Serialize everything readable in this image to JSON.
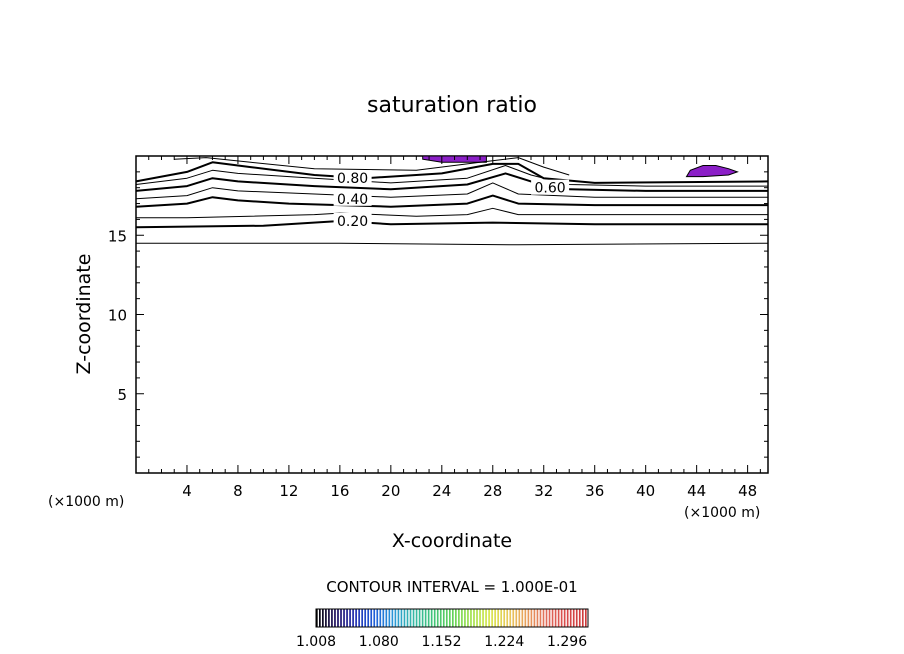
{
  "chart_data": {
    "type": "contour",
    "title": "saturation ratio",
    "xlabel": "X-coordinate",
    "ylabel": "Z-coordinate",
    "x_units_left": "(×1000 m)",
    "x_units_right": "(×1000 m)",
    "xlim": [
      0,
      49.6
    ],
    "ylim": [
      0,
      20
    ],
    "x_ticks": [
      4,
      8,
      12,
      16,
      20,
      24,
      28,
      32,
      36,
      40,
      44,
      48
    ],
    "y_ticks": [
      5,
      10,
      15
    ],
    "contour_interval_text": "CONTOUR INTERVAL = 1.000E-01",
    "contour_labels": [
      {
        "text": "0.80",
        "x": 17.0,
        "y": 18.6
      },
      {
        "text": "0.40",
        "x": 17.0,
        "y": 17.3
      },
      {
        "text": "0.20",
        "x": 17.0,
        "y": 15.9
      },
      {
        "text": "0.60",
        "x": 32.5,
        "y": 18.0
      }
    ],
    "contours": [
      {
        "level": 0.1,
        "bold": false,
        "points": [
          [
            0,
            14.5
          ],
          [
            16,
            14.5
          ],
          [
            30,
            14.4
          ],
          [
            49.6,
            14.5
          ]
        ]
      },
      {
        "level": 0.2,
        "bold": true,
        "points": [
          [
            0,
            15.5
          ],
          [
            10,
            15.6
          ],
          [
            16,
            15.9
          ],
          [
            20,
            15.7
          ],
          [
            28,
            15.8
          ],
          [
            36,
            15.7
          ],
          [
            49.6,
            15.7
          ]
        ]
      },
      {
        "level": 0.3,
        "bold": false,
        "points": [
          [
            0,
            16.1
          ],
          [
            4,
            16.1
          ],
          [
            14,
            16.3
          ],
          [
            16,
            16.4
          ],
          [
            22,
            16.2
          ],
          [
            26,
            16.3
          ],
          [
            28,
            16.7
          ],
          [
            30,
            16.3
          ],
          [
            36,
            16.3
          ],
          [
            49.6,
            16.3
          ]
        ]
      },
      {
        "level": 0.4,
        "bold": true,
        "points": [
          [
            0,
            16.8
          ],
          [
            4,
            17.0
          ],
          [
            6,
            17.4
          ],
          [
            8,
            17.2
          ],
          [
            12,
            17.0
          ],
          [
            20,
            16.8
          ],
          [
            26,
            17.0
          ],
          [
            28,
            17.5
          ],
          [
            30,
            17.0
          ],
          [
            36,
            16.9
          ],
          [
            49.6,
            16.9
          ]
        ]
      },
      {
        "level": 0.5,
        "bold": false,
        "points": [
          [
            0,
            17.3
          ],
          [
            4,
            17.5
          ],
          [
            6,
            18.0
          ],
          [
            8,
            17.8
          ],
          [
            14,
            17.6
          ],
          [
            20,
            17.4
          ],
          [
            26,
            17.6
          ],
          [
            28,
            18.3
          ],
          [
            30,
            17.6
          ],
          [
            36,
            17.4
          ],
          [
            49.6,
            17.4
          ]
        ]
      },
      {
        "level": 0.6,
        "bold": true,
        "points": [
          [
            0,
            17.8
          ],
          [
            4,
            18.1
          ],
          [
            6,
            18.6
          ],
          [
            8,
            18.4
          ],
          [
            14,
            18.1
          ],
          [
            20,
            17.9
          ],
          [
            26,
            18.2
          ],
          [
            29,
            18.9
          ],
          [
            31,
            18.4
          ],
          [
            34,
            17.9
          ],
          [
            40,
            17.8
          ],
          [
            49.6,
            17.8
          ]
        ]
      },
      {
        "level": 0.7,
        "bold": false,
        "points": [
          [
            0,
            18.2
          ],
          [
            4,
            18.6
          ],
          [
            6,
            19.1
          ],
          [
            8,
            18.9
          ],
          [
            14,
            18.6
          ],
          [
            20,
            18.3
          ],
          [
            26,
            18.6
          ],
          [
            29,
            19.4
          ],
          [
            31,
            18.8
          ],
          [
            34,
            18.2
          ],
          [
            40,
            18.1
          ],
          [
            49.6,
            18.1
          ]
        ]
      },
      {
        "level": 0.8,
        "bold": true,
        "points": [
          [
            0,
            18.4
          ],
          [
            4,
            19.0
          ],
          [
            6,
            19.6
          ],
          [
            9,
            19.3
          ],
          [
            14,
            18.8
          ],
          [
            18,
            18.6
          ],
          [
            24,
            18.9
          ],
          [
            28,
            19.5
          ],
          [
            30,
            19.5
          ],
          [
            32,
            18.6
          ],
          [
            36,
            18.3
          ],
          [
            49.6,
            18.4
          ]
        ]
      },
      {
        "level": 0.9,
        "bold": false,
        "points": [
          [
            3,
            19.8
          ],
          [
            5.5,
            19.9
          ],
          [
            9,
            19.6
          ],
          [
            14,
            19.2
          ],
          [
            22,
            19.1
          ],
          [
            27,
            19.6
          ],
          [
            30,
            19.9
          ],
          [
            32,
            19.3
          ],
          [
            34,
            18.8
          ]
        ]
      }
    ],
    "filled_regions": [
      {
        "color": "#8B1FC7",
        "points": [
          [
            22.5,
            20
          ],
          [
            27.5,
            20
          ],
          [
            27.5,
            19.6
          ],
          [
            24,
            19.6
          ],
          [
            22.5,
            19.8
          ]
        ]
      },
      {
        "color": "#8B1FC7",
        "points": [
          [
            43.2,
            18.7
          ],
          [
            43.5,
            19.1
          ],
          [
            44.5,
            19.4
          ],
          [
            45.5,
            19.4
          ],
          [
            46.5,
            19.2
          ],
          [
            47.2,
            19.0
          ],
          [
            46.5,
            18.8
          ],
          [
            44.5,
            18.7
          ]
        ]
      }
    ],
    "colorbar": {
      "min": 1.008,
      "max": 1.32,
      "tick_labels": [
        "1.008",
        "1.080",
        "1.152",
        "1.224",
        "1.296"
      ],
      "colors": [
        "#000000",
        "#1a0a5e",
        "#1e2bb0",
        "#1f5fd8",
        "#2a98d8",
        "#35b8a8",
        "#3fc27a",
        "#5fd15a",
        "#9ee04a",
        "#d7e64a",
        "#e8c85a",
        "#e89a5a",
        "#e06a5a",
        "#d84a4a",
        "#cc3a3a"
      ]
    }
  }
}
